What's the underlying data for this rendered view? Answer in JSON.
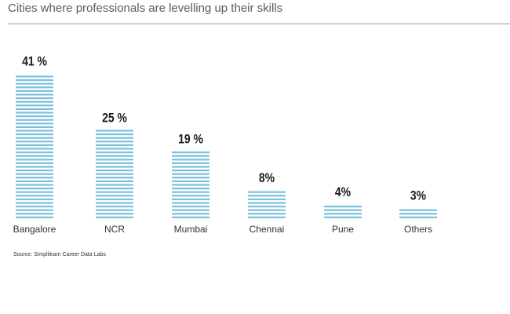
{
  "title": "Cities where professionals are levelling up their skills",
  "source": "Source: Simplilearn Career Data Labs",
  "colors": {
    "bar_stripe": "#7cc1dc",
    "value_label": "#1a1a1a",
    "category_label": "#333333"
  },
  "chart_data": {
    "type": "bar",
    "title": "Cities where professionals are levelling up their skills",
    "categories": [
      "Bangalore",
      "NCR",
      "Mumbai",
      "Chennai",
      "Pune",
      "Others"
    ],
    "values": [
      41,
      25,
      19,
      8,
      4,
      3
    ],
    "value_labels": [
      "41 %",
      "25 %",
      "19 %",
      "8%",
      "4%",
      "3%"
    ],
    "unit": "%",
    "xlabel": "",
    "ylabel": "",
    "axes_visible": false,
    "grid": false,
    "legend": "none",
    "bar_style": "horizontal-striped"
  }
}
